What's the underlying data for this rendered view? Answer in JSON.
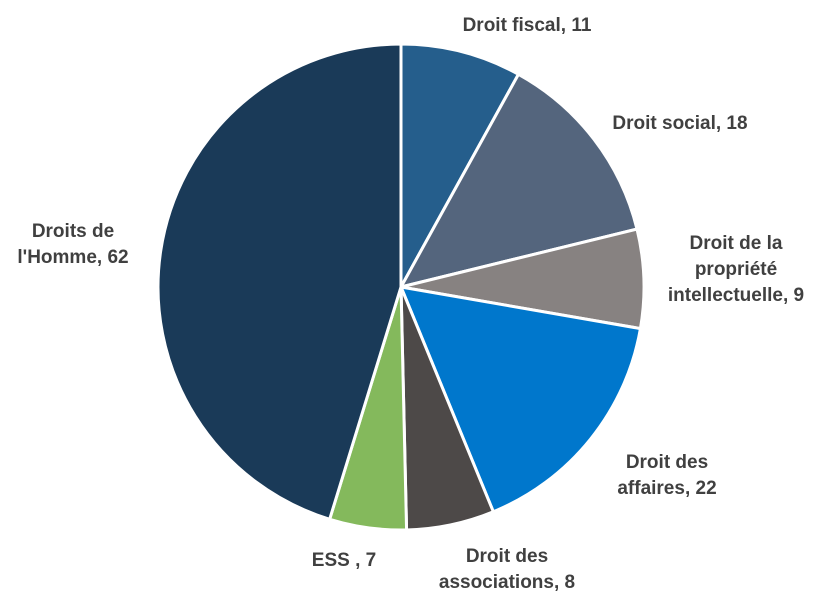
{
  "chart_data": {
    "type": "pie",
    "title": "",
    "start_angle_deg": 0,
    "direction": "clockwise",
    "slices": [
      {
        "name": "Droit fiscal",
        "value": 11,
        "color": "#255e8c",
        "label_lines": [
          "Droit fiscal, 11"
        ]
      },
      {
        "name": "Droit social",
        "value": 18,
        "color": "#54657d",
        "label_lines": [
          "Droit social, 18"
        ]
      },
      {
        "name": "Droit de la propriété intellectuelle",
        "value": 9,
        "color": "#878281",
        "label_lines": [
          "Droit de la",
          "propriété",
          "intellectuelle, 9"
        ]
      },
      {
        "name": "Droit des affaires",
        "value": 22,
        "color": "#0077cc",
        "label_lines": [
          "Droit des",
          "affaires, 22"
        ]
      },
      {
        "name": "Droit des associations",
        "value": 8,
        "color": "#4d4948",
        "label_lines": [
          "Droit des",
          "associations, 8"
        ]
      },
      {
        "name": "ESS",
        "value": 7,
        "color": "#84b95c",
        "label_lines": [
          "ESS , 7"
        ]
      },
      {
        "name": "Droits de l'Homme",
        "value": 62,
        "color": "#1a3a58",
        "label_lines": [
          "Droits de",
          "l'Homme, 62"
        ]
      }
    ]
  }
}
